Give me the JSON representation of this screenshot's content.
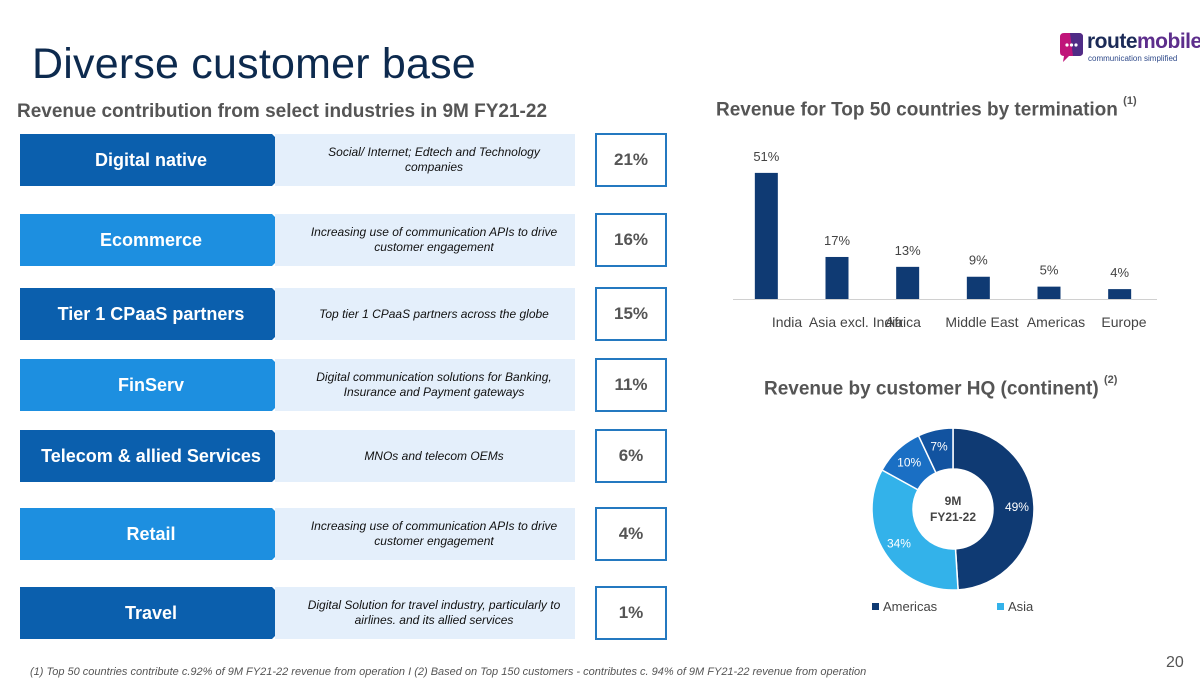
{
  "title": "Diverse customer base",
  "logo": {
    "name": "route",
    "name_accent": "mobile",
    "tagline": "communication simplified"
  },
  "left": {
    "heading": "Revenue contribution from select industries in 9M FY21-22",
    "rows": [
      {
        "label": "Digital native",
        "desc": "Social/ Internet; Edtech and Technology companies",
        "pct": "21%",
        "color": "#0b5fad"
      },
      {
        "label": "Ecommerce",
        "desc": "Increasing use of communication APIs to drive customer engagement",
        "pct": "16%",
        "color": "#1d8fe0"
      },
      {
        "label": "Tier 1 CPaaS partners",
        "desc": "Top tier 1 CPaaS partners across the globe",
        "pct": "15%",
        "color": "#0b5fad"
      },
      {
        "label": "FinServ",
        "desc": "Digital communication solutions for Banking, Insurance and Payment gateways",
        "pct": "11%",
        "color": "#1d8fe0"
      },
      {
        "label": "Telecom & allied Services",
        "desc": "MNOs and telecom OEMs",
        "pct": "6%",
        "color": "#0b5fad"
      },
      {
        "label": "Retail",
        "desc": "Increasing use of communication APIs to drive customer engagement",
        "pct": "4%",
        "color": "#1d8fe0"
      },
      {
        "label": "Travel",
        "desc": "Digital Solution for travel industry, particularly to airlines. and its allied services",
        "pct": "1%",
        "color": "#0b5fad"
      }
    ]
  },
  "bar_heading": {
    "text": "Revenue for Top 50 countries by termination",
    "sup": "(1)"
  },
  "donut_heading": {
    "text": "Revenue by customer HQ (continent)",
    "sup": "(2)"
  },
  "chart_data": [
    {
      "type": "bar",
      "categories": [
        "India",
        "Asia excl. India",
        "Africa",
        "Middle East",
        "Americas",
        "Europe"
      ],
      "values": [
        51,
        17,
        13,
        9,
        5,
        4
      ],
      "value_labels": [
        "51%",
        "17%",
        "13%",
        "9%",
        "5%",
        "4%"
      ],
      "bar_color": "#0f3a73",
      "ylim": [
        0,
        55
      ],
      "grid": false
    },
    {
      "type": "pie",
      "donut": true,
      "center_label": [
        "9M",
        "FY21-22"
      ],
      "slices": [
        {
          "name": "Americas",
          "value": 49,
          "label": "49%",
          "color": "#0f3a73"
        },
        {
          "name": "Asia",
          "value": 34,
          "label": "34%",
          "color": "#33b2ea"
        },
        {
          "name": "",
          "value": 10,
          "label": "10%",
          "color": "#1a6fc4"
        },
        {
          "name": "",
          "value": 7,
          "label": "7%",
          "color": "#1253a0"
        }
      ],
      "legend": [
        {
          "name": "Americas",
          "color": "#0f3a73"
        },
        {
          "name": "Asia",
          "color": "#33b2ea"
        }
      ],
      "legend_position": "bottom"
    }
  ],
  "footnote": "(1) Top 50 countries contribute c.92% of 9M FY21-22 revenue from operation    I    (2) Based on Top 150 customers - contributes c. 94% of 9M FY21-22 revenue from operation",
  "page_number": "20"
}
